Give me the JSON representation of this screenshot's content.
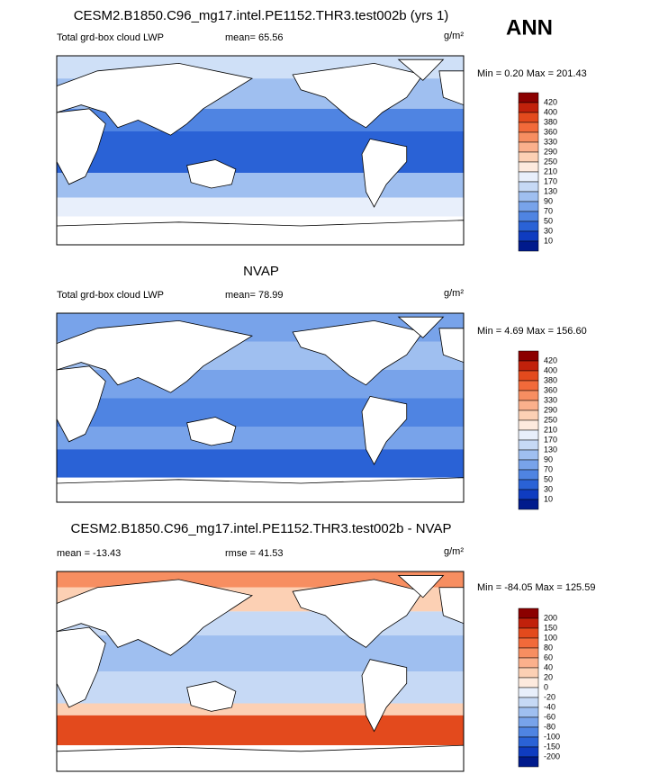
{
  "header": {
    "season": "ANN"
  },
  "panels": [
    {
      "title": "CESM2.B1850.C96_mg17.intel.PE1152.THR3.test002b (yrs 1)",
      "left_label": "Total grd-box cloud LWP",
      "stat_label": "mean=  65.56",
      "units": "g/m²",
      "range_label": "Min =   0.20 Max = 201.43",
      "colorbar": {
        "levels": [
          420,
          400,
          380,
          360,
          330,
          290,
          250,
          210,
          170,
          130,
          90,
          70,
          50,
          30,
          10
        ],
        "colors": [
          "#8b0000",
          "#c1210b",
          "#e34a1d",
          "#f26a3a",
          "#f78e61",
          "#fbb08c",
          "#fcd0b4",
          "#fdeade",
          "#e8effb",
          "#c6d9f5",
          "#9fbff0",
          "#78a3ea",
          "#4f84e2",
          "#2a62d6",
          "#0f3cc0",
          "#001a8c"
        ]
      }
    },
    {
      "title": "NVAP",
      "left_label": "Total grd-box cloud LWP",
      "stat_label": "mean=  78.99",
      "units": "g/m²",
      "range_label": "Min =   4.69 Max = 156.60",
      "colorbar": {
        "levels": [
          420,
          400,
          380,
          360,
          330,
          290,
          250,
          210,
          170,
          130,
          90,
          70,
          50,
          30,
          10
        ],
        "colors": [
          "#8b0000",
          "#c1210b",
          "#e34a1d",
          "#f26a3a",
          "#f78e61",
          "#fbb08c",
          "#fcd0b4",
          "#fdeade",
          "#e8effb",
          "#c6d9f5",
          "#9fbff0",
          "#78a3ea",
          "#4f84e2",
          "#2a62d6",
          "#0f3cc0",
          "#001a8c"
        ]
      }
    },
    {
      "title": "CESM2.B1850.C96_mg17.intel.PE1152.THR3.test002b - NVAP",
      "left_label": "mean = -13.43",
      "stat_label": "rmse =  41.53",
      "units": "g/m²",
      "range_label": "Min = -84.05 Max = 125.59",
      "colorbar": {
        "levels": [
          200,
          150,
          100,
          80,
          60,
          40,
          20,
          0,
          -20,
          -40,
          -60,
          -80,
          -100,
          -150,
          -200
        ],
        "colors": [
          "#8b0000",
          "#c1210b",
          "#e34a1d",
          "#f26a3a",
          "#f78e61",
          "#fbb08c",
          "#fcd0b4",
          "#fdeade",
          "#e8effb",
          "#c6d9f5",
          "#9fbff0",
          "#78a3ea",
          "#4f84e2",
          "#2a62d6",
          "#0f3cc0",
          "#001a8c"
        ]
      }
    }
  ]
}
